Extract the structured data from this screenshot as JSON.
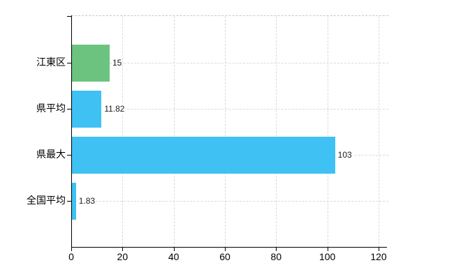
{
  "chart_data": {
    "type": "bar",
    "orientation": "horizontal",
    "title": "",
    "xlabel": "",
    "ylabel": "",
    "categories": [
      "江東区",
      "県平均",
      "県最大",
      "全国平均"
    ],
    "values": [
      15,
      11.82,
      103,
      1.83
    ],
    "value_labels": [
      "15",
      "11.82",
      "103",
      "1.83"
    ],
    "bar_colors": [
      "#6CC380",
      "#3FC1F3",
      "#3FC1F3",
      "#3FC1F3"
    ],
    "xlim": [
      0,
      120
    ],
    "x_ticks": [
      0,
      20,
      40,
      60,
      80,
      100,
      120
    ],
    "grid": true,
    "grid_style": "dashed",
    "legend": false,
    "value_label_position": "right-of-bar"
  },
  "colors": {
    "background": "#FFFFFF",
    "axis": "#000000",
    "grid": "#D9D9D9",
    "top_border": "#C8C8C8",
    "text": "#000000",
    "green_bar": "#6CC380",
    "blue_bar": "#3FC1F3"
  }
}
